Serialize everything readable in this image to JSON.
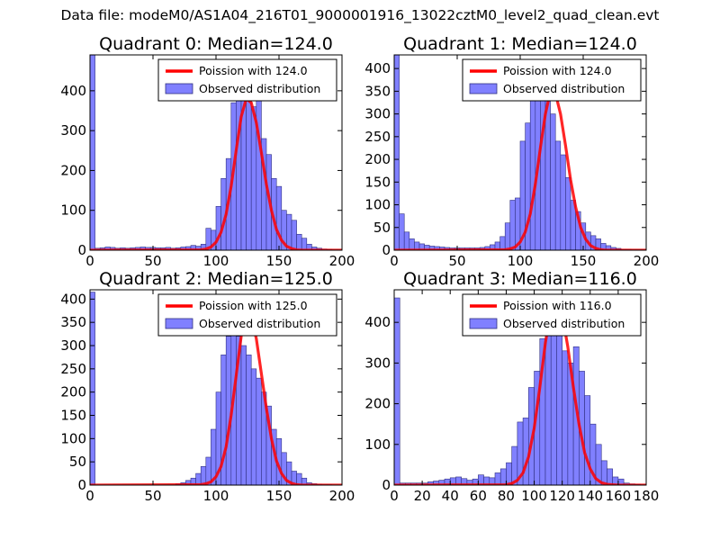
{
  "figure": {
    "suptitle": "Data file: modeM0/AS1A04_216T01_9000001916_13022cztM0_level2_quad_clean.evt"
  },
  "style": {
    "bar_fill": "#8080ff",
    "bar_stroke": "#303080",
    "fit_line": "#ff0000",
    "axes": "#000000",
    "legend_border": "#000000"
  },
  "chart_data": [
    {
      "type": "bar",
      "title": "Quadrant 0: Median=124.0",
      "xlim": [
        0,
        200
      ],
      "ylim": [
        0,
        490
      ],
      "xticks": [
        0,
        50,
        100,
        150,
        200
      ],
      "yticks": [
        0,
        100,
        200,
        300,
        400
      ],
      "bin_width": 4,
      "grid": false,
      "legend_position": "top-right",
      "series": [
        {
          "name": "Poission with 124.0",
          "kind": "line",
          "x": [
            88,
            92,
            96,
            100,
            104,
            108,
            112,
            116,
            120,
            124,
            128,
            132,
            136,
            140,
            144,
            148,
            152,
            156,
            160,
            164,
            168,
            172,
            176
          ],
          "y": [
            1,
            3,
            8,
            20,
            45,
            90,
            160,
            250,
            335,
            380,
            370,
            320,
            245,
            165,
            100,
            52,
            25,
            10,
            4,
            1,
            0,
            0,
            0
          ]
        },
        {
          "name": "Observed distribution",
          "kind": "hist",
          "x": [
            0,
            4,
            8,
            12,
            16,
            20,
            24,
            28,
            32,
            36,
            40,
            44,
            48,
            52,
            56,
            60,
            64,
            68,
            72,
            76,
            80,
            84,
            88,
            92,
            96,
            100,
            104,
            108,
            112,
            116,
            120,
            124,
            128,
            132,
            136,
            140,
            144,
            148,
            152,
            156,
            160,
            164,
            168,
            172,
            176,
            180,
            184,
            188,
            192,
            196
          ],
          "y": [
            490,
            5,
            6,
            8,
            7,
            5,
            6,
            5,
            6,
            7,
            8,
            7,
            7,
            6,
            6,
            7,
            5,
            6,
            8,
            9,
            12,
            10,
            15,
            55,
            50,
            110,
            180,
            230,
            370,
            400,
            380,
            375,
            360,
            380,
            280,
            240,
            180,
            160,
            100,
            90,
            75,
            40,
            30,
            15,
            8,
            5,
            3,
            2,
            1,
            1
          ]
        }
      ]
    },
    {
      "type": "bar",
      "title": "Quadrant 1: Median=124.0",
      "xlim": [
        0,
        200
      ],
      "ylim": [
        0,
        430
      ],
      "xticks": [
        0,
        50,
        100,
        150,
        200
      ],
      "yticks": [
        0,
        50,
        100,
        150,
        200,
        250,
        300,
        350,
        400
      ],
      "bin_width": 4,
      "grid": false,
      "legend_position": "top-right",
      "series": [
        {
          "name": "Poission with 124.0",
          "kind": "line",
          "x": [
            88,
            92,
            96,
            100,
            104,
            108,
            112,
            116,
            120,
            124,
            128,
            132,
            136,
            140,
            144,
            148,
            152,
            156,
            160,
            164,
            168,
            172,
            176
          ],
          "y": [
            1,
            3,
            7,
            18,
            40,
            80,
            145,
            225,
            300,
            350,
            345,
            300,
            230,
            155,
            95,
            50,
            24,
            10,
            4,
            1,
            0,
            0,
            0
          ]
        },
        {
          "name": "Observed distribution",
          "kind": "hist",
          "x": [
            0,
            4,
            8,
            12,
            16,
            20,
            24,
            28,
            32,
            36,
            40,
            44,
            48,
            52,
            56,
            60,
            64,
            68,
            72,
            76,
            80,
            84,
            88,
            92,
            96,
            100,
            104,
            108,
            112,
            116,
            120,
            124,
            128,
            132,
            136,
            140,
            144,
            148,
            152,
            156,
            160,
            164,
            168,
            172,
            176,
            180,
            184,
            188,
            192,
            196
          ],
          "y": [
            430,
            80,
            40,
            25,
            18,
            14,
            11,
            9,
            8,
            7,
            6,
            5,
            5,
            5,
            5,
            5,
            5,
            6,
            8,
            12,
            18,
            30,
            60,
            110,
            115,
            240,
            280,
            335,
            345,
            345,
            330,
            300,
            240,
            210,
            160,
            110,
            85,
            60,
            40,
            32,
            25,
            15,
            10,
            6,
            4,
            2,
            2,
            1,
            1,
            1
          ]
        }
      ]
    },
    {
      "type": "bar",
      "title": "Quadrant 2: Median=125.0",
      "xlim": [
        0,
        200
      ],
      "ylim": [
        0,
        420
      ],
      "xticks": [
        0,
        50,
        100,
        150,
        200
      ],
      "yticks": [
        0,
        50,
        100,
        150,
        200,
        250,
        300,
        350,
        400
      ],
      "bin_width": 4,
      "grid": false,
      "legend_position": "top-right",
      "series": [
        {
          "name": "Poission with 125.0",
          "kind": "line",
          "x": [
            88,
            92,
            96,
            100,
            104,
            108,
            112,
            116,
            120,
            124,
            128,
            132,
            136,
            140,
            144,
            148,
            152,
            156,
            160,
            164,
            168,
            172,
            176
          ],
          "y": [
            1,
            3,
            7,
            18,
            40,
            82,
            150,
            235,
            320,
            365,
            360,
            315,
            240,
            165,
            100,
            52,
            25,
            10,
            4,
            1,
            0,
            0,
            0
          ]
        },
        {
          "name": "Observed distribution",
          "kind": "hist",
          "x": [
            0,
            4,
            8,
            12,
            16,
            20,
            24,
            28,
            32,
            36,
            40,
            44,
            48,
            52,
            56,
            60,
            64,
            68,
            72,
            76,
            80,
            84,
            88,
            92,
            96,
            100,
            104,
            108,
            112,
            116,
            120,
            124,
            128,
            132,
            136,
            140,
            144,
            148,
            152,
            156,
            160,
            164,
            168,
            172,
            176,
            180,
            184,
            188,
            192,
            196
          ],
          "y": [
            415,
            0,
            0,
            0,
            0,
            0,
            0,
            0,
            0,
            0,
            0,
            0,
            0,
            0,
            0,
            0,
            0,
            3,
            5,
            10,
            15,
            25,
            40,
            60,
            120,
            200,
            280,
            320,
            360,
            320,
            300,
            280,
            250,
            230,
            200,
            170,
            120,
            100,
            70,
            50,
            30,
            25,
            15,
            5,
            3,
            2,
            1,
            1,
            0,
            0
          ]
        }
      ]
    },
    {
      "type": "bar",
      "title": "Quadrant 3: Median=116.0",
      "xlim": [
        0,
        180
      ],
      "ylim": [
        0,
        480
      ],
      "xticks": [
        0,
        20,
        40,
        60,
        80,
        100,
        120,
        140,
        160,
        180
      ],
      "yticks": [
        0,
        100,
        200,
        300,
        400
      ],
      "bin_width": 4,
      "grid": false,
      "legend_position": "top-right",
      "series": [
        {
          "name": "Poission with 116.0",
          "kind": "line",
          "x": [
            80,
            84,
            88,
            92,
            96,
            100,
            104,
            108,
            112,
            116,
            120,
            124,
            128,
            132,
            136,
            140,
            144,
            148,
            152,
            156,
            160
          ],
          "y": [
            1,
            4,
            12,
            30,
            70,
            140,
            240,
            350,
            430,
            450,
            420,
            340,
            240,
            150,
            80,
            40,
            16,
            6,
            2,
            1,
            0
          ]
        },
        {
          "name": "Observed distribution",
          "kind": "hist",
          "x": [
            0,
            4,
            8,
            12,
            16,
            20,
            24,
            28,
            32,
            36,
            40,
            44,
            48,
            52,
            56,
            60,
            64,
            68,
            72,
            76,
            80,
            84,
            88,
            92,
            96,
            100,
            104,
            108,
            112,
            116,
            120,
            124,
            128,
            132,
            136,
            140,
            144,
            148,
            152,
            156,
            160,
            164,
            168,
            172,
            176
          ],
          "y": [
            460,
            5,
            5,
            5,
            5,
            5,
            8,
            10,
            12,
            15,
            18,
            20,
            16,
            12,
            15,
            25,
            20,
            18,
            30,
            40,
            55,
            95,
            155,
            165,
            240,
            280,
            360,
            400,
            440,
            400,
            330,
            300,
            340,
            280,
            220,
            150,
            100,
            60,
            40,
            20,
            15,
            5,
            3,
            2,
            1
          ]
        }
      ]
    }
  ]
}
